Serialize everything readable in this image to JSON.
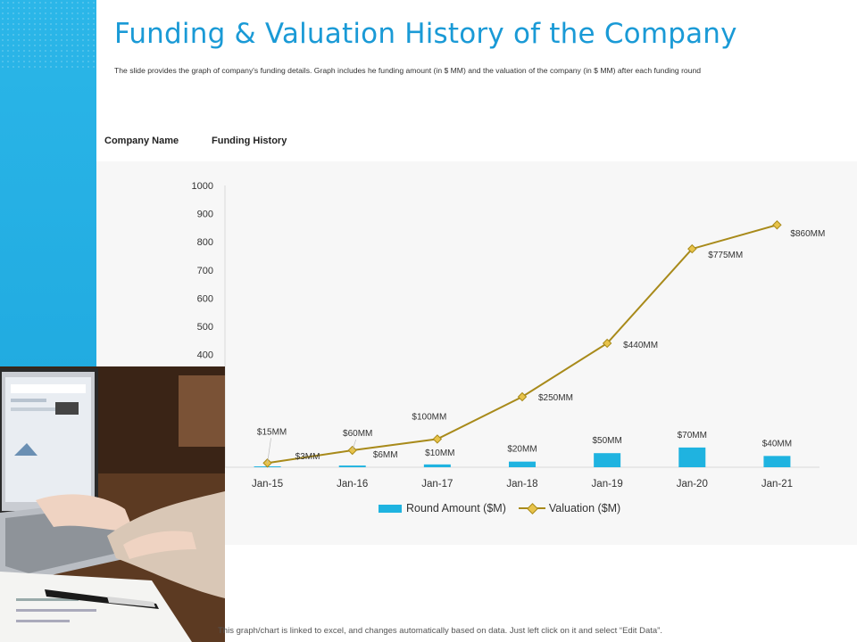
{
  "header": {
    "title": "Funding & Valuation History of the Company",
    "subtitle": "The slide provides the graph of company's funding details. Graph includes he funding amount (in $ MM) and the valuation of the company (in $ MM) after each funding round"
  },
  "labels": {
    "company_name": "Company Name",
    "funding_history": "Funding History"
  },
  "footnote": "This graph/chart is linked to excel, and changes automatically based on data. Just left click on it and select “Edit Data”.",
  "colors": {
    "accent": "#1a9ad6",
    "side_band": "#1fa8de",
    "bar": "#1fb3e0",
    "line": "#a88a1a",
    "marker": "#e8c34a"
  },
  "chart_data": {
    "type": "bar",
    "categories": [
      "Jan-15",
      "Jan-16",
      "Jan-17",
      "Jan-18",
      "Jan-19",
      "Jan-20",
      "Jan-21"
    ],
    "y_ticks": [
      "400",
      "500",
      "600",
      "700",
      "800",
      "900",
      "1000"
    ],
    "ylim": [
      0,
      1000
    ],
    "series": [
      {
        "name": "Round Amount ($M)",
        "type": "bar",
        "values": [
          3,
          6,
          10,
          20,
          50,
          70,
          40
        ],
        "labels": [
          "$3MM",
          "$6MM",
          "$10MM",
          "$20MM",
          "$50MM",
          "$70MM",
          "$40MM"
        ]
      },
      {
        "name": "Valuation ($M)",
        "type": "line",
        "values": [
          15,
          60,
          100,
          250,
          440,
          775,
          860
        ],
        "labels": [
          "$15MM",
          "$60MM",
          "$100MM",
          "$250MM",
          "$440MM",
          "$775MM",
          "$860MM"
        ]
      }
    ],
    "legend": "bottom-center",
    "grid": false
  }
}
